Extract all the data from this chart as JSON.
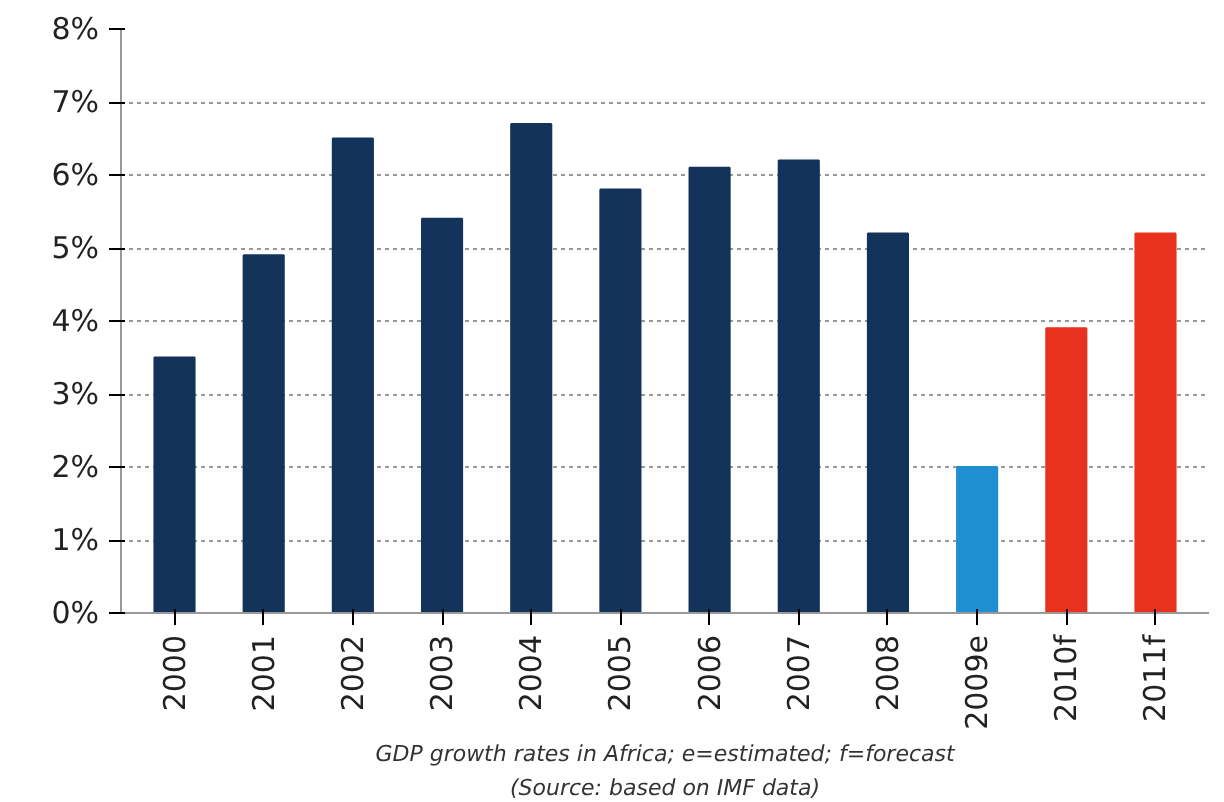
{
  "chart_data": {
    "type": "bar",
    "categories": [
      "2000",
      "2001",
      "2002",
      "2003",
      "2004",
      "2005",
      "2006",
      "2007",
      "2008",
      "2009e",
      "2010f",
      "2011f"
    ],
    "values": [
      3.5,
      4.9,
      6.5,
      5.4,
      6.7,
      5.8,
      6.1,
      6.2,
      5.2,
      2.0,
      3.9,
      5.2
    ],
    "colors": [
      "#13335a",
      "#13335a",
      "#13335a",
      "#13335a",
      "#13335a",
      "#13335a",
      "#13335a",
      "#13335a",
      "#13335a",
      "#1f8fd2",
      "#e8321e",
      "#e8321e"
    ],
    "ylim": [
      0,
      8
    ],
    "yticks": [
      {
        "value": 0,
        "label": "0%"
      },
      {
        "value": 1,
        "label": "1%"
      },
      {
        "value": 2,
        "label": "2%"
      },
      {
        "value": 3,
        "label": "3%"
      },
      {
        "value": 4,
        "label": "4%"
      },
      {
        "value": 5,
        "label": "5%"
      },
      {
        "value": 6,
        "label": "6%"
      },
      {
        "value": 7,
        "label": "7%"
      },
      {
        "value": 8,
        "label": "8%"
      }
    ],
    "grid": "y",
    "annotations": [
      "GDP growth rates in Africa; e=estimated; f=forecast",
      "(Source: based on IMF data)"
    ]
  }
}
